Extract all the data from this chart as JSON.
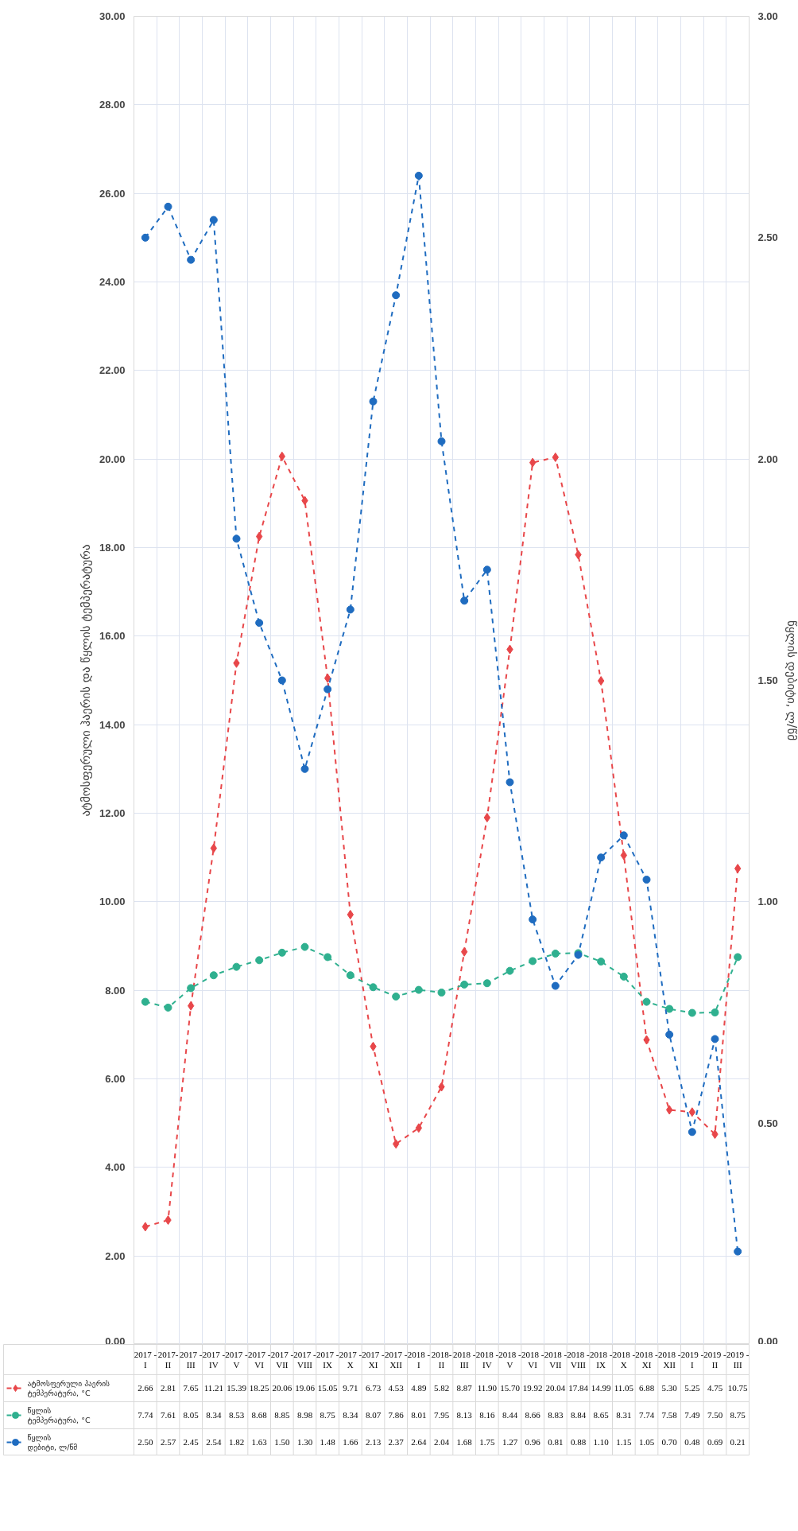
{
  "chart_data": {
    "type": "line",
    "ylabel": "ატმოსფერული ჰაერის და წყლის ტემპერატურა",
    "y2label": "წყლის დებიტი, ლ/წმ",
    "categories": [
      "2017 - I",
      "2017- II",
      "2017 - III",
      "2017 - IV",
      "2017 - V",
      "2017 - VI",
      "2017 - VII",
      "2017 - VIII",
      "2017 - IX",
      "2017 - X",
      "2017 - XI",
      "2017 - XII",
      "2018 - I",
      "2018- II",
      "2018 - III",
      "2018 - IV",
      "2018 - V",
      "2018 - VI",
      "2018 - VII",
      "2018 - VIII",
      "2018 - IX",
      "2018 - X",
      "2018 - XI",
      "2018 - XII",
      "2019 - I",
      "2019 - II",
      "2019 - III"
    ],
    "series": [
      {
        "name": "ატმოსფერული ჰაერის ტემპერატურა, °C",
        "color": "#e8474a",
        "marker": "diamond",
        "values": [
          2.66,
          2.81,
          7.65,
          11.21,
          15.39,
          18.25,
          20.06,
          19.06,
          15.05,
          9.71,
          6.73,
          4.53,
          4.89,
          5.82,
          8.87,
          11.9,
          15.7,
          19.92,
          20.04,
          17.84,
          14.99,
          11.05,
          6.88,
          5.3,
          5.25,
          4.75,
          10.75
        ],
        "value_labels": [
          "2.66",
          "2.81",
          "7.65",
          "11.21",
          "15.39",
          "18.25",
          "20.06",
          "19.06",
          "15.05",
          "9.71",
          "6.73",
          "4.53",
          "4.89",
          "5.82",
          "8.87",
          "11.90",
          "15.70",
          "19.92",
          "20.04",
          "17.84",
          "14.99",
          "11.05",
          "6.88",
          "5.30",
          "5.25",
          "4.75",
          "10.75"
        ]
      },
      {
        "name": "წყლის ტემპერატურა, °C",
        "color": "#2fb08f",
        "marker": "circle",
        "values": [
          7.74,
          7.61,
          8.05,
          8.34,
          8.53,
          8.68,
          8.85,
          8.98,
          8.75,
          8.34,
          8.07,
          7.86,
          8.01,
          7.95,
          8.13,
          8.16,
          8.44,
          8.66,
          8.83,
          8.84,
          8.65,
          8.31,
          7.74,
          7.58,
          7.49,
          7.5,
          8.75
        ],
        "value_labels": [
          "7.74",
          "7.61",
          "8.05",
          "8.34",
          "8.53",
          "8.68",
          "8.85",
          "8.98",
          "8.75",
          "8.34",
          "8.07",
          "7.86",
          "8.01",
          "7.95",
          "8.13",
          "8.16",
          "8.44",
          "8.66",
          "8.83",
          "8.84",
          "8.65",
          "8.31",
          "7.74",
          "7.58",
          "7.49",
          "7.50",
          "8.75"
        ]
      },
      {
        "name": "წყლის დებიტი, ლ/წმ",
        "color": "#1f6cc0",
        "marker": "circle",
        "axis": "y2",
        "values": [
          2.5,
          2.57,
          2.45,
          2.54,
          1.82,
          1.63,
          1.5,
          1.3,
          1.48,
          1.66,
          2.13,
          2.37,
          2.64,
          2.04,
          1.68,
          1.75,
          1.27,
          0.96,
          0.81,
          0.88,
          1.1,
          1.15,
          1.05,
          0.7,
          0.48,
          0.69,
          0.21
        ],
        "value_labels": [
          "2.50",
          "2.57",
          "2.45",
          "2.54",
          "1.82",
          "1.63",
          "1.50",
          "1.30",
          "1.48",
          "1.66",
          "2.13",
          "2.37",
          "2.64",
          "2.04",
          "1.68",
          "1.75",
          "1.27",
          "0.96",
          "0.81",
          "0.88",
          "1.10",
          "1.15",
          "1.05",
          "0.70",
          "0.48",
          "0.69",
          "0.21"
        ]
      }
    ],
    "ylim": [
      0,
      30
    ],
    "yticks": [
      {
        "value": 0,
        "label": "0.00"
      },
      {
        "value": 2,
        "label": "2.00"
      },
      {
        "value": 4,
        "label": "4.00"
      },
      {
        "value": 6,
        "label": "6.00"
      },
      {
        "value": 8,
        "label": "8.00"
      },
      {
        "value": 10,
        "label": "10.00"
      },
      {
        "value": 12,
        "label": "12.00"
      },
      {
        "value": 14,
        "label": "14.00"
      },
      {
        "value": 16,
        "label": "16.00"
      },
      {
        "value": 18,
        "label": "18.00"
      },
      {
        "value": 20,
        "label": "20.00"
      },
      {
        "value": 22,
        "label": "22.00"
      },
      {
        "value": 24,
        "label": "24.00"
      },
      {
        "value": 26,
        "label": "26.00"
      },
      {
        "value": 28,
        "label": "28.00"
      },
      {
        "value": 30,
        "label": "30.00"
      }
    ],
    "y2lim": [
      0,
      3
    ],
    "y2ticks": [
      {
        "value": 0,
        "label": "0.00"
      },
      {
        "value": 0.5,
        "label": "0.50"
      },
      {
        "value": 1,
        "label": "1.00"
      },
      {
        "value": 1.5,
        "label": "1.50"
      },
      {
        "value": 2,
        "label": "2.00"
      },
      {
        "value": 2.5,
        "label": "2.50"
      },
      {
        "value": 3,
        "label": "3.00"
      }
    ],
    "grid": true,
    "legend": "bottom",
    "line_style": "dashed"
  }
}
